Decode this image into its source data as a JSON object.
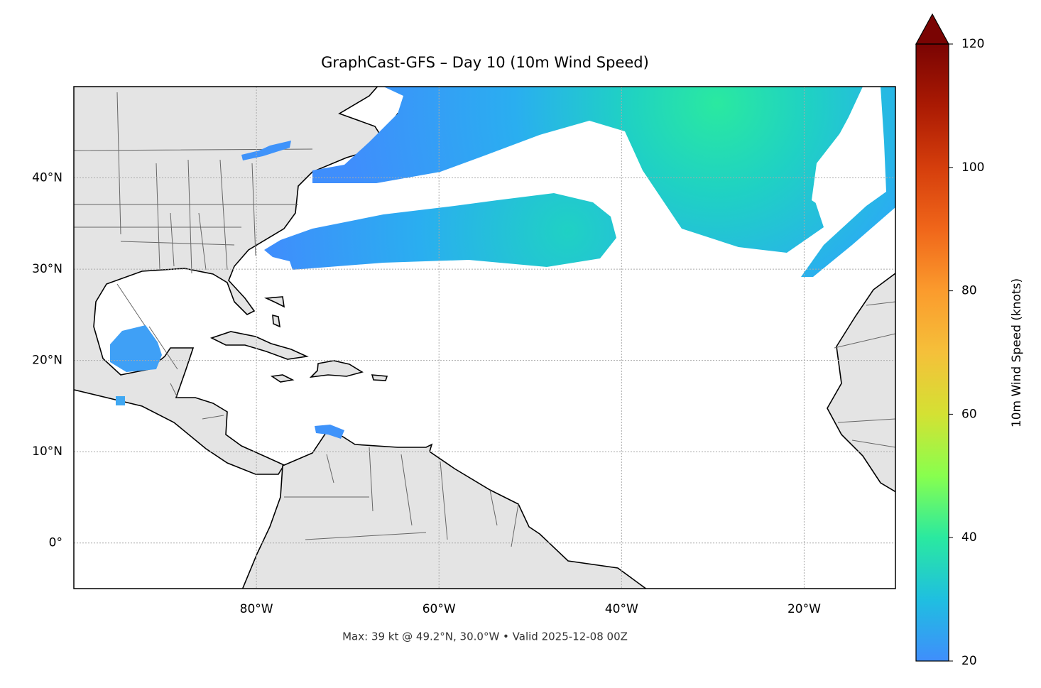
{
  "chart_data": {
    "type": "map",
    "title": "GraphCast-GFS – Day 10 (10m Wind Speed)",
    "footer": "Max: 39 kt @ 49.2°N, 30.0°W • Valid 2025-12-08 00Z",
    "xlim": [
      -100,
      -10
    ],
    "ylim": [
      -5,
      50
    ],
    "xticks": [
      {
        "value": -80,
        "label": "80°W"
      },
      {
        "value": -60,
        "label": "60°W"
      },
      {
        "value": -40,
        "label": "40°W"
      },
      {
        "value": -20,
        "label": "20°W"
      }
    ],
    "yticks": [
      {
        "value": 0,
        "label": "0°"
      },
      {
        "value": 10,
        "label": "10°N"
      },
      {
        "value": 20,
        "label": "20°N"
      },
      {
        "value": 30,
        "label": "30°N"
      },
      {
        "value": 40,
        "label": "40°N"
      }
    ],
    "grid": true,
    "colorbar": {
      "label": "10m Wind Speed (knots)",
      "lim": [
        20,
        120
      ],
      "ticks": [
        20,
        40,
        60,
        80,
        100,
        120
      ],
      "colors": [
        "#3f8efc",
        "#1fbfe0",
        "#2ae9a0",
        "#88ff4e",
        "#d4e133",
        "#f5c03a",
        "#fb9b2d",
        "#f0661a",
        "#d53e0c",
        "#aa1a03",
        "#7a0403"
      ],
      "extend": "max"
    }
  }
}
